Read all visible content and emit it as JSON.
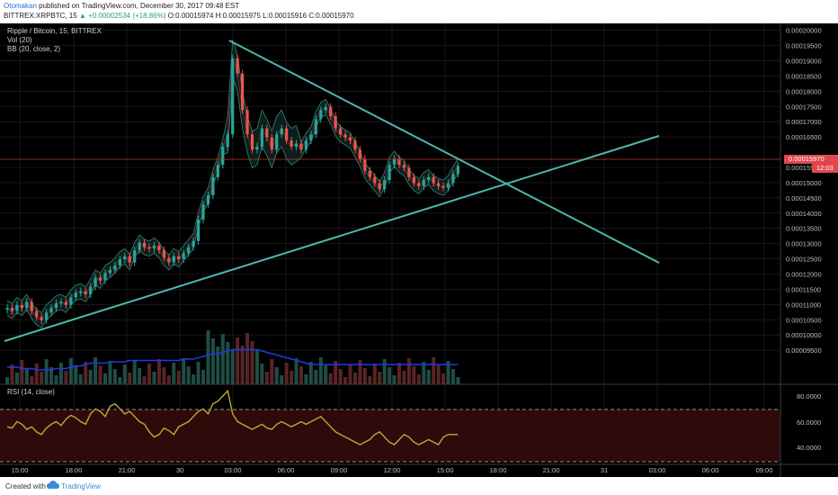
{
  "header": {
    "author": "Otomakan",
    "published": "published on TradingView.com, December 30, 2017 09:48 EST",
    "symbol": "BITTREX:XRPBTC, 15",
    "change": "+0.00002534 (+18.86%)",
    "ohlc": "O:0.00015974 H:0.00015975 L:0.00015916 C:0.00015970"
  },
  "legend": {
    "title": "Ripple / Bitcoin, 15, BITTREX",
    "vol": "Vol (20)",
    "bb": "BB (20, close, 2)",
    "rsi": "RSI (14, close)"
  },
  "price_axis": [
    "0.00020000",
    "0.00019500",
    "0.00019000",
    "0.00018500",
    "0.00018000",
    "0.00017500",
    "0.00017000",
    "0.00016500",
    "0.00015500",
    "0.00015000",
    "0.00014500",
    "0.00014000",
    "0.00013500",
    "0.00013000",
    "0.00012500",
    "0.00012000",
    "0.00011500",
    "0.00011000",
    "0.00010500",
    "0.00010000",
    "0.00009500"
  ],
  "last_price": {
    "label": "0.00015970",
    "countdown": "12:03"
  },
  "rsi_axis": [
    "80.0000",
    "60.0000",
    "40.0000"
  ],
  "time_axis": [
    "15:00",
    "18:00",
    "21:00",
    "30",
    "03:00",
    "06:00",
    "09:00",
    "12:00",
    "15:00",
    "18:00",
    "21:00",
    "31",
    "03:00",
    "06:00",
    "09:00"
  ],
  "colors": {
    "up": "#26a69a",
    "down": "#ef5350",
    "trendline": "#4db6ac",
    "volume_ma": "#1e3ae8",
    "rsi_line": "#c4a53a",
    "background": "#000000"
  },
  "footer": {
    "created": "Created with",
    "brand": "TradingView"
  },
  "chart_data": {
    "type": "candlestick",
    "symbol": "XRPBTC",
    "timeframe": "15",
    "price_range": [
      9.15e-05,
      0.0002035
    ],
    "closes": [
      0.000113,
      0.000112,
      0.000114,
      0.000113,
      0.000115,
      0.000112,
      0.00011,
      0.000109,
      0.0001115,
      0.000113,
      0.0001145,
      0.000115,
      0.000114,
      0.0001165,
      0.000118,
      0.0001185,
      0.0001175,
      0.00012,
      0.000123,
      0.000122,
      0.0001245,
      0.0001255,
      0.000127,
      0.000129,
      0.00013,
      0.000128,
      0.000132,
      0.0001345,
      0.000133,
      0.0001325,
      0.0001335,
      0.000132,
      0.0001295,
      0.000128,
      0.00013,
      0.000129,
      0.000131,
      0.000133,
      0.000135,
      0.000142,
      0.000147,
      0.00015,
      0.000156,
      0.00016,
      0.000166,
      0.00017,
      0.000195,
      0.00019,
      0.000178,
      0.00017,
      0.000165,
      0.000166,
      0.000172,
      0.000169,
      0.000165,
      0.00017,
      0.000172,
      0.000168,
      0.000166,
      0.000167,
      0.000165,
      0.000168,
      0.00017,
      0.000175,
      0.000178,
      0.000179,
      0.000176,
      0.000172,
      0.00017,
      0.000169,
      0.000168,
      0.000165,
      0.000162,
      0.000158,
      0.000156,
      0.000154,
      0.000152,
      0.000155,
      0.00016,
      0.000162,
      0.00016,
      0.000159,
      0.000156,
      0.000154,
      0.000153,
      0.000155,
      0.000156,
      0.000154,
      0.000153,
      0.0001525,
      0.000154,
      0.000157,
      0.0001597
    ]
  }
}
